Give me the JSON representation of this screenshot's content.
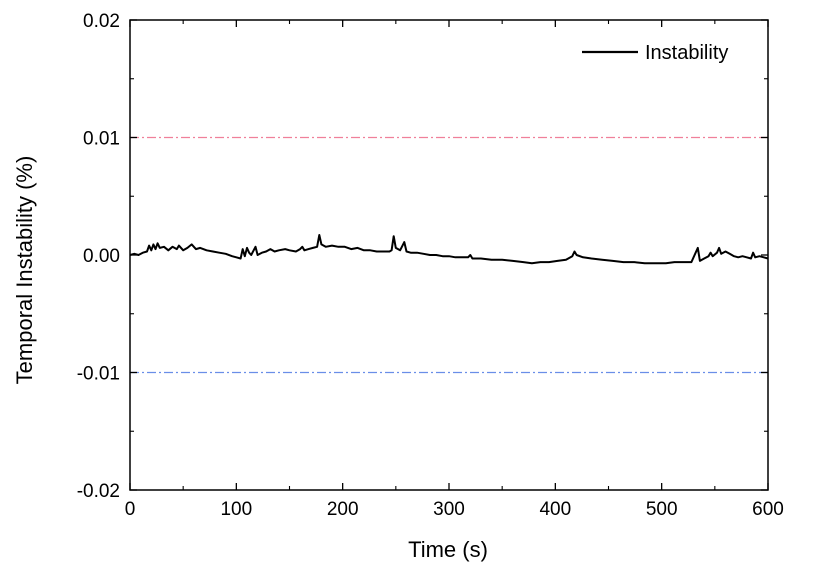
{
  "chart_data": {
    "type": "line",
    "title": "",
    "xlabel": "Time (s)",
    "ylabel": "Temporal Instability (%)",
    "xlim": [
      0,
      600
    ],
    "ylim": [
      -0.02,
      0.02
    ],
    "x_ticks": [
      "0",
      "100",
      "200",
      "300",
      "400",
      "500",
      "600"
    ],
    "x_tick_values": [
      0,
      100,
      200,
      300,
      400,
      500,
      600
    ],
    "y_ticks": [
      "0.02",
      "0.01",
      "0.00",
      "-0.01",
      "-0.02"
    ],
    "y_tick_values": [
      0.02,
      0.01,
      0.0,
      -0.01,
      -0.02
    ],
    "grid": false,
    "legend": {
      "position": "top-right",
      "entries": [
        "Instability"
      ]
    },
    "reference_lines": [
      {
        "y": 0.01,
        "color": "#f0809a",
        "style": "dash-dot"
      },
      {
        "y": -0.01,
        "color": "#6a8ee8",
        "style": "dash-dot"
      }
    ],
    "series": [
      {
        "name": "Instability",
        "color": "#000000",
        "points": [
          [
            0,
            0.0
          ],
          [
            4,
            0.0001
          ],
          [
            8,
            0.0
          ],
          [
            12,
            0.0002
          ],
          [
            16,
            0.0003
          ],
          [
            18,
            0.0008
          ],
          [
            20,
            0.0004
          ],
          [
            22,
            0.0009
          ],
          [
            24,
            0.0005
          ],
          [
            26,
            0.001
          ],
          [
            28,
            0.0006
          ],
          [
            32,
            0.0007
          ],
          [
            36,
            0.0004
          ],
          [
            40,
            0.0007
          ],
          [
            44,
            0.0005
          ],
          [
            46,
            0.0008
          ],
          [
            50,
            0.0004
          ],
          [
            54,
            0.0006
          ],
          [
            58,
            0.0009
          ],
          [
            62,
            0.0005
          ],
          [
            66,
            0.0006
          ],
          [
            72,
            0.0004
          ],
          [
            78,
            0.0003
          ],
          [
            84,
            0.0002
          ],
          [
            90,
            0.0001
          ],
          [
            96,
            -0.0001
          ],
          [
            100,
            -0.0002
          ],
          [
            104,
            -0.0003
          ],
          [
            106,
            0.0005
          ],
          [
            108,
            -0.0001
          ],
          [
            110,
            0.0006
          ],
          [
            112,
            0.0002
          ],
          [
            114,
            0.0
          ],
          [
            118,
            0.0007
          ],
          [
            120,
            0.0
          ],
          [
            124,
            0.0002
          ],
          [
            128,
            0.0003
          ],
          [
            132,
            0.0005
          ],
          [
            136,
            0.0003
          ],
          [
            140,
            0.0004
          ],
          [
            146,
            0.0005
          ],
          [
            150,
            0.0004
          ],
          [
            156,
            0.0003
          ],
          [
            160,
            0.0005
          ],
          [
            162,
            0.0007
          ],
          [
            164,
            0.0004
          ],
          [
            168,
            0.0005
          ],
          [
            172,
            0.0006
          ],
          [
            176,
            0.0007
          ],
          [
            178,
            0.0017
          ],
          [
            180,
            0.0009
          ],
          [
            184,
            0.0007
          ],
          [
            190,
            0.0008
          ],
          [
            196,
            0.0007
          ],
          [
            202,
            0.0007
          ],
          [
            208,
            0.0005
          ],
          [
            214,
            0.0006
          ],
          [
            220,
            0.0004
          ],
          [
            226,
            0.0004
          ],
          [
            232,
            0.0003
          ],
          [
            238,
            0.0003
          ],
          [
            244,
            0.0003
          ],
          [
            246,
            0.0004
          ],
          [
            248,
            0.0016
          ],
          [
            250,
            0.0006
          ],
          [
            254,
            0.0004
          ],
          [
            258,
            0.0011
          ],
          [
            260,
            0.0003
          ],
          [
            264,
            0.0002
          ],
          [
            270,
            0.0002
          ],
          [
            276,
            0.0001
          ],
          [
            282,
            0.0
          ],
          [
            288,
            0.0
          ],
          [
            294,
            -0.0001
          ],
          [
            300,
            -0.0001
          ],
          [
            306,
            -0.0002
          ],
          [
            312,
            -0.0002
          ],
          [
            318,
            -0.0002
          ],
          [
            320,
            0.0
          ],
          [
            322,
            -0.0003
          ],
          [
            330,
            -0.0003
          ],
          [
            340,
            -0.0004
          ],
          [
            350,
            -0.0004
          ],
          [
            360,
            -0.0005
          ],
          [
            370,
            -0.0006
          ],
          [
            378,
            -0.0007
          ],
          [
            386,
            -0.0006
          ],
          [
            394,
            -0.0006
          ],
          [
            402,
            -0.0005
          ],
          [
            410,
            -0.0004
          ],
          [
            416,
            -0.0001
          ],
          [
            418,
            0.0003
          ],
          [
            420,
            0.0
          ],
          [
            426,
            -0.0002
          ],
          [
            434,
            -0.0003
          ],
          [
            444,
            -0.0004
          ],
          [
            454,
            -0.0005
          ],
          [
            464,
            -0.0006
          ],
          [
            474,
            -0.0006
          ],
          [
            484,
            -0.0007
          ],
          [
            494,
            -0.0007
          ],
          [
            504,
            -0.0007
          ],
          [
            512,
            -0.0006
          ],
          [
            520,
            -0.0006
          ],
          [
            528,
            -0.0006
          ],
          [
            534,
            0.0006
          ],
          [
            536,
            -0.0005
          ],
          [
            540,
            -0.0003
          ],
          [
            544,
            -0.0001
          ],
          [
            546,
            0.0002
          ],
          [
            548,
            -0.0001
          ],
          [
            552,
            0.0002
          ],
          [
            554,
            0.0006
          ],
          [
            556,
            0.0001
          ],
          [
            560,
            0.0003
          ],
          [
            564,
            0.0001
          ],
          [
            568,
            -0.0001
          ],
          [
            572,
            -0.0002
          ],
          [
            576,
            -0.0001
          ],
          [
            580,
            -0.0002
          ],
          [
            584,
            -0.0003
          ],
          [
            586,
            0.0002
          ],
          [
            588,
            -0.0002
          ],
          [
            592,
            -0.0001
          ],
          [
            596,
            -0.0002
          ],
          [
            600,
            -0.0003
          ]
        ]
      }
    ]
  }
}
